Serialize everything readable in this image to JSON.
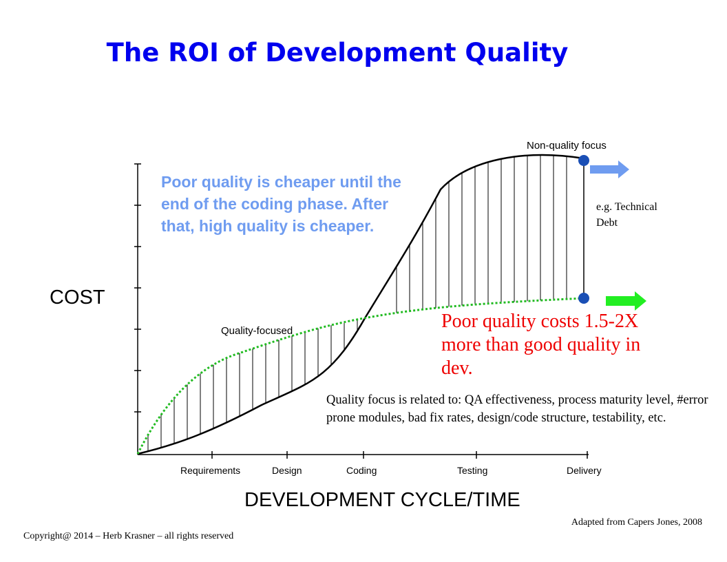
{
  "title": "The ROI of Development Quality",
  "axes": {
    "y_label": "COST",
    "x_label": "DEVELOPMENT CYCLE/TIME",
    "phases": [
      "Requirements",
      "Design",
      "Coding",
      "Testing",
      "Delivery"
    ]
  },
  "curves": {
    "non_quality_label": "Non-quality focus",
    "quality_label": "Quality-focused"
  },
  "notes": {
    "blue": "Poor quality is cheaper until the end of the coding phase. After that, high quality is cheaper.",
    "red": "Poor quality costs 1.5-2X more than good quality in dev.",
    "focus": "Quality focus is related to: QA effectiveness, process maturity level, #error prone modules, bad fix rates, design/code structure, testability, etc.",
    "tech_debt": "e.g. Technical Debt"
  },
  "credit": "Adapted from Capers Jones, 2008",
  "copyright": "Copyright@ 2014 – Herb Krasner – all rights reserved",
  "colors": {
    "title": "#0000ee",
    "blue_note": "#6f9cf0",
    "red_note": "#ee0000",
    "quality_curve": "#22bb22",
    "non_quality_arrow": "#6f9cf0",
    "quality_arrow": "#22ee22",
    "endpoint_dot": "#1a4fb5"
  }
}
